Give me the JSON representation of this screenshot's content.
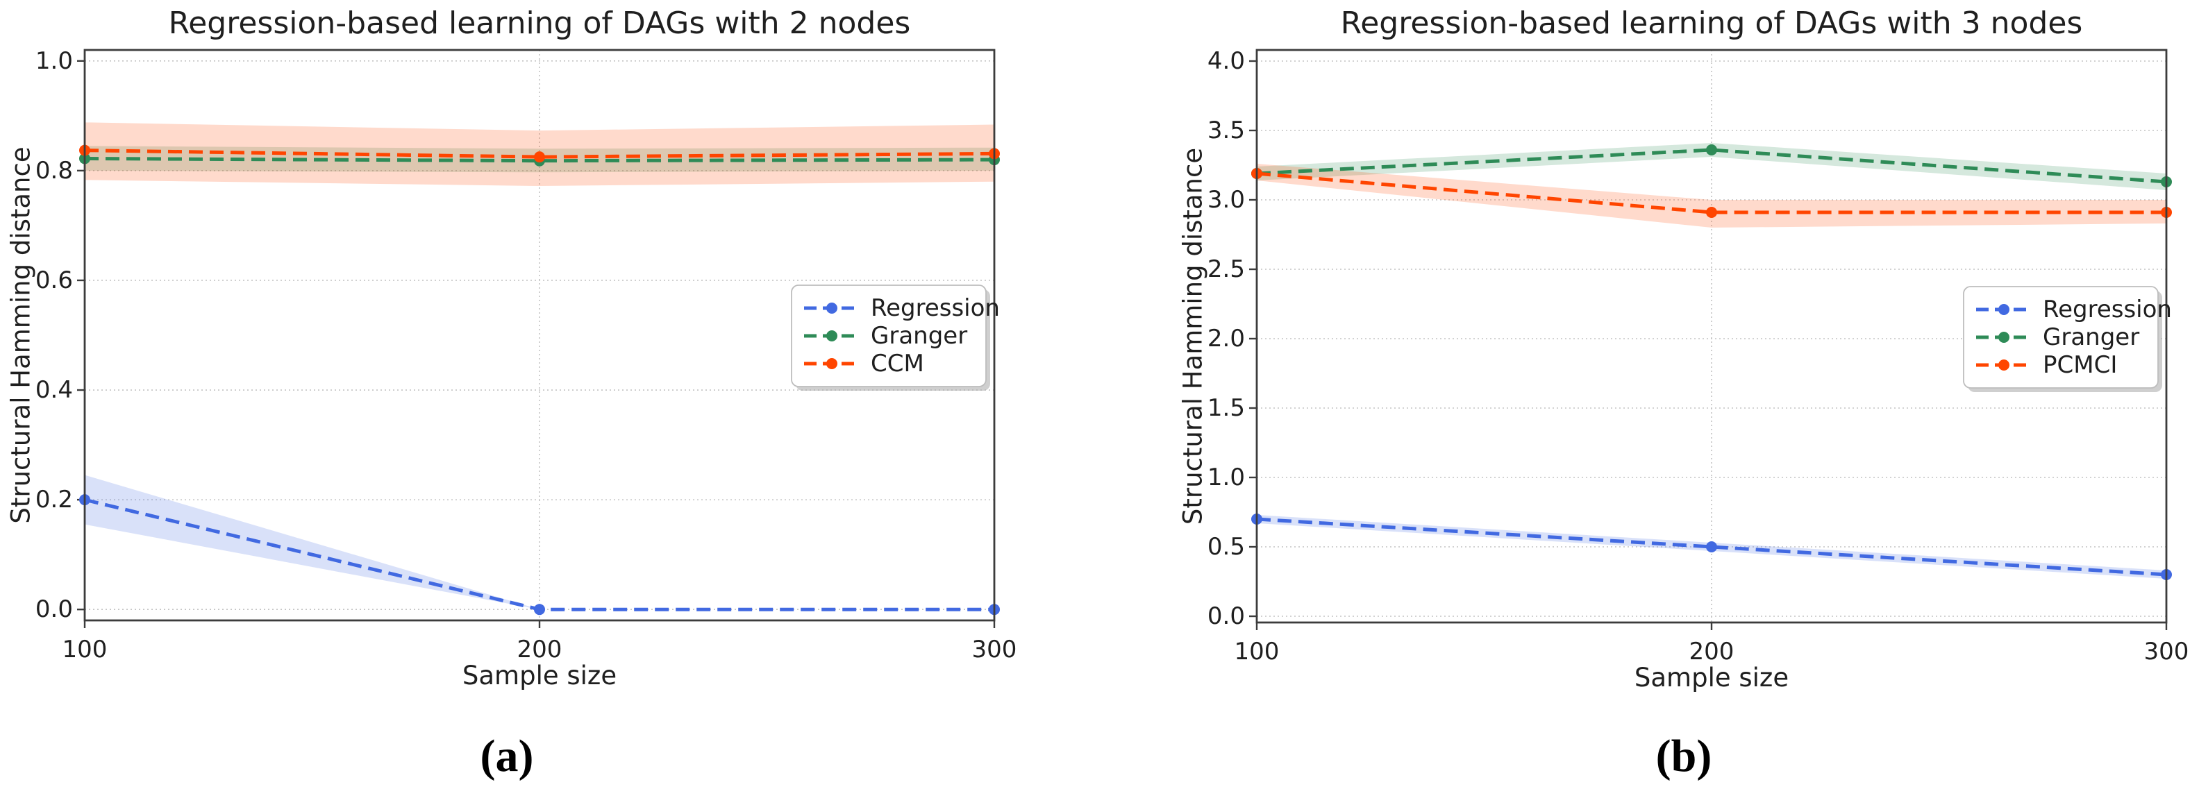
{
  "page": {
    "background": "#ffffff"
  },
  "figure": {
    "captions": {
      "a": "(a)",
      "b": "(b)"
    }
  },
  "style_colors": {
    "regression_blue": "#4169e1",
    "granger_green": "#2e8b57",
    "ccm_pcmci_orange": "#ff4500",
    "grid_gray": "#c3c3c3",
    "spine_gray": "#3c3c3c",
    "legend_border": "#bdbdbd",
    "legend_shadow": "#a8a8a8",
    "text_dark": "#1f1f1f"
  },
  "chart_data": [
    {
      "id": "a",
      "type": "line",
      "title": "Regression-based learning of DAGs with 2 nodes",
      "xlabel": "Sample size",
      "ylabel": "Structural Hamming distance",
      "x": [
        100,
        200,
        300
      ],
      "xticks": [
        100,
        200,
        300
      ],
      "yticks": [
        0.0,
        0.2,
        0.4,
        0.6,
        0.8,
        1.0
      ],
      "xlim": [
        100,
        300
      ],
      "ylim": [
        -0.02,
        1.02
      ],
      "grid": true,
      "legend_position": "right-middle",
      "legend_entries": [
        "Regression",
        "Granger",
        "CCM"
      ],
      "series": [
        {
          "name": "Regression",
          "color": "#4169e1",
          "values": [
            0.2,
            0.0,
            0.0
          ],
          "band_lower": [
            0.155,
            0.0,
            0.0
          ],
          "band_upper": [
            0.245,
            0.0,
            0.0
          ]
        },
        {
          "name": "Granger",
          "color": "#2e8b57",
          "values": [
            0.822,
            0.818,
            0.82
          ],
          "band_lower": [
            0.8,
            0.797,
            0.8
          ],
          "band_upper": [
            0.845,
            0.84,
            0.842
          ]
        },
        {
          "name": "CCM",
          "color": "#ff4500",
          "values": [
            0.837,
            0.825,
            0.831
          ],
          "band_lower": [
            0.783,
            0.772,
            0.78
          ],
          "band_upper": [
            0.888,
            0.873,
            0.884
          ]
        }
      ]
    },
    {
      "id": "b",
      "type": "line",
      "title": "Regression-based learning of DAGs with 3 nodes",
      "xlabel": "Sample size",
      "ylabel": "Structural Hamming distance",
      "x": [
        100,
        200,
        300
      ],
      "xticks": [
        100,
        200,
        300
      ],
      "yticks": [
        0.0,
        0.5,
        1.0,
        1.5,
        2.0,
        2.5,
        3.0,
        3.5,
        4.0
      ],
      "xlim": [
        100,
        300
      ],
      "ylim": [
        -0.045,
        4.08
      ],
      "grid": true,
      "legend_position": "right-middle",
      "legend_entries": [
        "Regression",
        "Granger",
        "PCMCI"
      ],
      "series": [
        {
          "name": "Regression",
          "color": "#4169e1",
          "values": [
            0.7,
            0.5,
            0.3
          ],
          "band_lower": [
            0.67,
            0.47,
            0.27
          ],
          "band_upper": [
            0.73,
            0.53,
            0.33
          ]
        },
        {
          "name": "Granger",
          "color": "#2e8b57",
          "values": [
            3.19,
            3.36,
            3.13
          ],
          "band_lower": [
            3.14,
            3.31,
            3.07
          ],
          "band_upper": [
            3.24,
            3.41,
            3.19
          ]
        },
        {
          "name": "PCMCI",
          "color": "#ff4500",
          "values": [
            3.19,
            2.91,
            2.91
          ],
          "band_lower": [
            3.14,
            2.8,
            2.83
          ],
          "band_upper": [
            3.26,
            3.0,
            3.0
          ]
        }
      ]
    }
  ]
}
